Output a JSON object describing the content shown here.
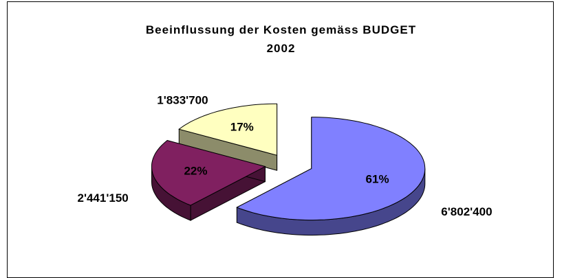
{
  "chart_data": {
    "type": "pie",
    "title": "Beeinflussung der Kosten gemäss BUDGET\n2002",
    "categories": [
      null,
      null,
      null
    ],
    "values": [
      6802400,
      2441150,
      1833700
    ],
    "value_labels": [
      "6'802'400",
      "2'441'150",
      "1'833'700"
    ],
    "percent_labels": [
      "61%",
      "22%",
      "17%"
    ],
    "colors": [
      "#8080ff",
      "#802060",
      "#ffffc0"
    ],
    "exploded": true,
    "three_d": true
  }
}
